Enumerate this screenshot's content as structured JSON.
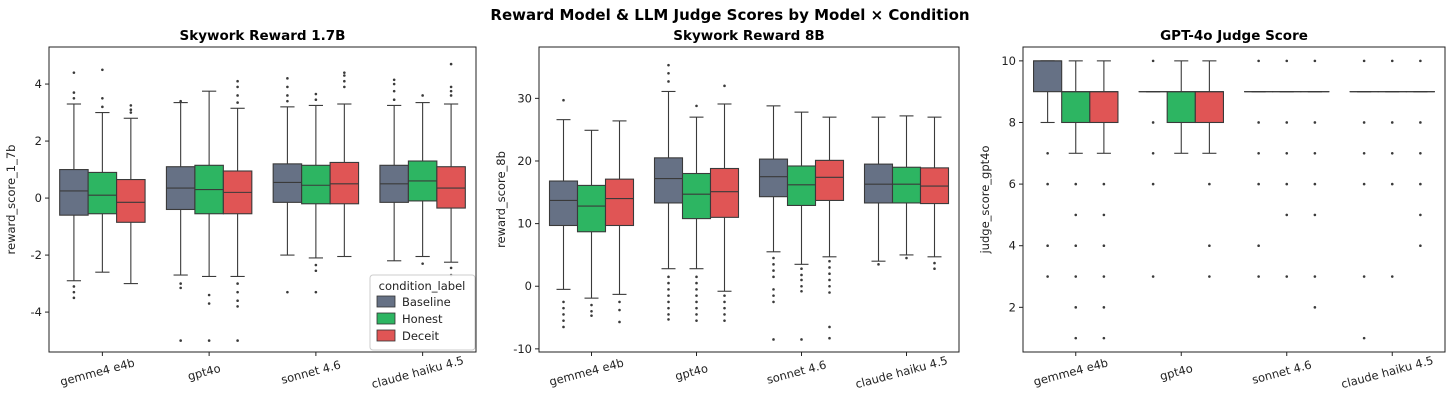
{
  "figure": {
    "title": "Reward Model & LLM Judge Scores by Model × Condition"
  },
  "legend": {
    "title": "condition_label",
    "entries": [
      {
        "label": "Baseline",
        "color": "#667185"
      },
      {
        "label": "Honest",
        "color": "#2db562"
      },
      {
        "label": "Deceit",
        "color": "#e05555"
      }
    ]
  },
  "chart_data": [
    {
      "type": "box",
      "title": "Skywork Reward 1.7B",
      "ylabel": "reward_score_1_7b",
      "ylim": [
        -5.4,
        5.3
      ],
      "yticks": [
        -4,
        -2,
        0,
        2,
        4
      ],
      "categories": [
        "gemme4 e4b",
        "gpt4o",
        "sonnet 4.6",
        "claude haiku 4.5"
      ],
      "series": [
        {
          "name": "Baseline",
          "boxes": [
            {
              "whislo": -2.9,
              "q1": -0.6,
              "med": 0.25,
              "q3": 1.0,
              "whishi": 3.3,
              "fliers": [
                -3.1,
                -3.3,
                -3.5,
                3.5,
                3.7,
                4.4
              ]
            },
            {
              "whislo": -2.7,
              "q1": -0.4,
              "med": 0.35,
              "q3": 1.1,
              "whishi": 3.35,
              "fliers": [
                -3.0,
                -3.15,
                -5.0,
                3.4
              ]
            },
            {
              "whislo": -2.0,
              "q1": -0.15,
              "med": 0.55,
              "q3": 1.2,
              "whishi": 3.2,
              "fliers": [
                -3.3,
                3.4,
                3.6,
                3.9,
                4.2
              ]
            },
            {
              "whislo": -2.2,
              "q1": -0.15,
              "med": 0.5,
              "q3": 1.15,
              "whishi": 3.25,
              "fliers": [
                3.45,
                3.75,
                4.0,
                4.15
              ]
            }
          ]
        },
        {
          "name": "Honest",
          "boxes": [
            {
              "whislo": -2.6,
              "q1": -0.55,
              "med": 0.1,
              "q3": 0.9,
              "whishi": 3.0,
              "fliers": [
                3.2,
                3.5,
                4.5
              ]
            },
            {
              "whislo": -2.75,
              "q1": -0.55,
              "med": 0.3,
              "q3": 1.15,
              "whishi": 3.75,
              "fliers": [
                -3.4,
                -3.7,
                -5.0
              ]
            },
            {
              "whislo": -2.1,
              "q1": -0.2,
              "med": 0.45,
              "q3": 1.15,
              "whishi": 3.25,
              "fliers": [
                -2.35,
                -2.55,
                -3.3,
                3.45,
                3.65
              ]
            },
            {
              "whislo": -2.05,
              "q1": -0.1,
              "med": 0.6,
              "q3": 1.3,
              "whishi": 3.35,
              "fliers": [
                -2.3,
                3.6
              ]
            }
          ]
        },
        {
          "name": "Deceit",
          "boxes": [
            {
              "whislo": -3.0,
              "q1": -0.85,
              "med": -0.15,
              "q3": 0.65,
              "whishi": 2.8,
              "fliers": [
                3.0,
                3.1,
                3.25
              ]
            },
            {
              "whislo": -2.75,
              "q1": -0.55,
              "med": 0.2,
              "q3": 0.95,
              "whishi": 3.15,
              "fliers": [
                -3.0,
                -3.3,
                -3.6,
                -3.8,
                -5.0,
                3.35,
                3.6,
                3.9,
                4.1
              ]
            },
            {
              "whislo": -2.05,
              "q1": -0.2,
              "med": 0.5,
              "q3": 1.25,
              "whishi": 3.3,
              "fliers": [
                3.9,
                4.1,
                4.3,
                4.4
              ]
            },
            {
              "whislo": -2.25,
              "q1": -0.35,
              "med": 0.35,
              "q3": 1.1,
              "whishi": 3.3,
              "fliers": [
                -2.45,
                -2.7,
                3.6,
                3.75,
                3.9,
                4.7
              ]
            }
          ]
        }
      ]
    },
    {
      "type": "box",
      "title": "Skywork Reward 8B",
      "ylabel": "reward_score_8b",
      "ylim": [
        -10.5,
        38.2
      ],
      "yticks": [
        -10,
        0,
        10,
        20,
        30
      ],
      "categories": [
        "gemme4 e4b",
        "gpt4o",
        "sonnet 4.6",
        "claude haiku 4.5"
      ],
      "series": [
        {
          "name": "Baseline",
          "boxes": [
            {
              "whislo": -0.5,
              "q1": 9.7,
              "med": 13.7,
              "q3": 16.8,
              "whishi": 26.6,
              "fliers": [
                -2.5,
                -3.5,
                -4.5,
                -5.5,
                -6.5,
                29.7
              ]
            },
            {
              "whislo": 2.8,
              "q1": 13.3,
              "med": 17.2,
              "q3": 20.5,
              "whishi": 31.1,
              "fliers": [
                1.5,
                0.5,
                -0.5,
                -1.5,
                -2.5,
                -3.5,
                -4.5,
                -5.3,
                32.7,
                34.0,
                35.3
              ]
            },
            {
              "whislo": 5.5,
              "q1": 14.3,
              "med": 17.5,
              "q3": 20.3,
              "whishi": 28.8,
              "fliers": [
                4.5,
                3.5,
                2.5,
                1.5,
                -0.5,
                -1.5,
                -2.5,
                -8.5
              ]
            },
            {
              "whislo": 4.0,
              "q1": 13.3,
              "med": 16.3,
              "q3": 19.5,
              "whishi": 27.0,
              "fliers": [
                3.5
              ]
            }
          ]
        },
        {
          "name": "Honest",
          "boxes": [
            {
              "whislo": -1.9,
              "q1": 8.7,
              "med": 12.8,
              "q3": 16.1,
              "whishi": 24.9,
              "fliers": [
                -3.0,
                -4.0,
                -4.7
              ]
            },
            {
              "whislo": 2.8,
              "q1": 10.8,
              "med": 14.7,
              "q3": 18.0,
              "whishi": 27.0,
              "fliers": [
                1.5,
                0.5,
                -0.5,
                -1.5,
                -2.5,
                -3.5,
                -4.5,
                -5.5,
                28.8
              ]
            },
            {
              "whislo": 3.5,
              "q1": 12.9,
              "med": 16.2,
              "q3": 19.2,
              "whishi": 27.8,
              "fliers": [
                2.8,
                1.8,
                1.0,
                0.0,
                -0.8,
                -8.5
              ]
            },
            {
              "whislo": 5.0,
              "q1": 13.3,
              "med": 16.3,
              "q3": 19.0,
              "whishi": 27.2,
              "fliers": [
                4.5
              ]
            }
          ]
        },
        {
          "name": "Deceit",
          "boxes": [
            {
              "whislo": -1.3,
              "q1": 9.7,
              "med": 14.0,
              "q3": 17.1,
              "whishi": 26.4,
              "fliers": [
                -2.5,
                -3.8,
                -5.7
              ]
            },
            {
              "whislo": -0.8,
              "q1": 11.0,
              "med": 15.1,
              "q3": 18.8,
              "whishi": 29.1,
              "fliers": [
                -1.5,
                -2.5,
                -3.5,
                -4.5,
                -5.5,
                32.0
              ]
            },
            {
              "whislo": 4.7,
              "q1": 13.7,
              "med": 17.4,
              "q3": 20.1,
              "whishi": 27.0,
              "fliers": [
                4.0,
                3.0,
                2.0,
                1.0,
                0.0,
                -1.0,
                -6.5,
                -8.3
              ]
            },
            {
              "whislo": 4.7,
              "q1": 13.2,
              "med": 16.0,
              "q3": 18.9,
              "whishi": 27.0,
              "fliers": [
                3.7,
                2.8
              ]
            }
          ]
        }
      ]
    },
    {
      "type": "box",
      "title": "GPT-4o Judge Score",
      "ylabel": "judge_score_gpt4o",
      "ylim": [
        0.55,
        10.45
      ],
      "yticks": [
        2,
        4,
        6,
        8,
        10
      ],
      "categories": [
        "gemme4 e4b",
        "gpt4o",
        "sonnet 4.6",
        "claude haiku 4.5"
      ],
      "series": [
        {
          "name": "Baseline",
          "boxes": [
            {
              "whislo": 8,
              "q1": 9,
              "med": 10,
              "q3": 10,
              "whishi": 10,
              "fliers": [
                7,
                6,
                4,
                3
              ]
            },
            {
              "whislo": 9,
              "q1": 9,
              "med": 9,
              "q3": 9,
              "whishi": 9,
              "fliers": [
                10,
                8,
                7,
                6,
                3
              ]
            },
            {
              "whislo": 9,
              "q1": 9,
              "med": 9,
              "q3": 9,
              "whishi": 9,
              "fliers": [
                10,
                8,
                7,
                6,
                4,
                3
              ]
            },
            {
              "whislo": 9,
              "q1": 9,
              "med": 9,
              "q3": 9,
              "whishi": 9,
              "fliers": [
                10,
                8,
                7,
                6,
                3,
                1
              ]
            }
          ]
        },
        {
          "name": "Honest",
          "boxes": [
            {
              "whislo": 7,
              "q1": 8,
              "med": 9,
              "q3": 9,
              "whishi": 10,
              "fliers": [
                6,
                5,
                4,
                3,
                2,
                1
              ]
            },
            {
              "whislo": 7,
              "q1": 8,
              "med": 9,
              "q3": 9,
              "whishi": 10,
              "fliers": []
            },
            {
              "whislo": 9,
              "q1": 9,
              "med": 9,
              "q3": 9,
              "whishi": 9,
              "fliers": [
                10,
                8,
                7,
                6,
                5,
                3
              ]
            },
            {
              "whislo": 9,
              "q1": 9,
              "med": 9,
              "q3": 9,
              "whishi": 9,
              "fliers": [
                10,
                8,
                7,
                6,
                3
              ]
            }
          ]
        },
        {
          "name": "Deceit",
          "boxes": [
            {
              "whislo": 7,
              "q1": 8,
              "med": 9,
              "q3": 9,
              "whishi": 10,
              "fliers": [
                6,
                5,
                4,
                3,
                2,
                1
              ]
            },
            {
              "whislo": 7,
              "q1": 8,
              "med": 9,
              "q3": 9,
              "whishi": 10,
              "fliers": [
                6,
                4,
                3
              ]
            },
            {
              "whislo": 9,
              "q1": 9,
              "med": 9,
              "q3": 9,
              "whishi": 9,
              "fliers": [
                10,
                8,
                7,
                6,
                5,
                3,
                2
              ]
            },
            {
              "whislo": 9,
              "q1": 9,
              "med": 9,
              "q3": 9,
              "whishi": 9,
              "fliers": [
                10,
                8,
                7,
                6,
                5,
                4
              ]
            }
          ]
        }
      ]
    }
  ]
}
